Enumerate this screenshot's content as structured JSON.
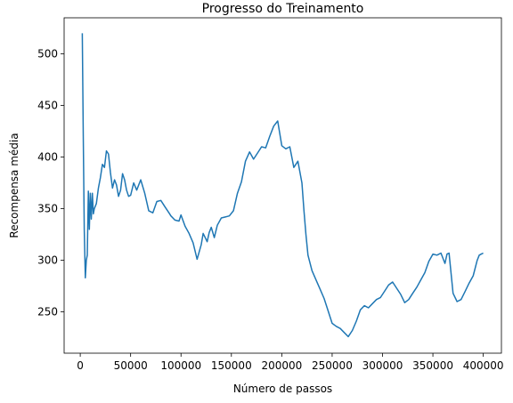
{
  "chart_data": {
    "type": "line",
    "title": "Progresso do Treinamento",
    "xlabel": "Número de passos",
    "ylabel": "Recompensa média",
    "xlim": [
      -16000,
      418000
    ],
    "ylim": [
      210,
      535
    ],
    "xticks": [
      0,
      50000,
      100000,
      150000,
      200000,
      250000,
      300000,
      350000,
      400000
    ],
    "xtick_labels": [
      "0",
      "50000",
      "100000",
      "150000",
      "200000",
      "250000",
      "300000",
      "350000",
      "400000"
    ],
    "yticks": [
      250,
      300,
      350,
      400,
      450,
      500
    ],
    "ytick_labels": [
      "250",
      "300",
      "350",
      "400",
      "450",
      "500"
    ],
    "grid": false,
    "legend": "none",
    "series": [
      {
        "color": "#1f77b4",
        "x": [
          2000,
          3000,
          4000,
          5000,
          6000,
          7000,
          8000,
          9000,
          10000,
          11000,
          12000,
          13000,
          14000,
          16000,
          18000,
          20000,
          22000,
          24000,
          26000,
          28000,
          30000,
          32000,
          34000,
          36000,
          38000,
          40000,
          42000,
          44000,
          46000,
          48000,
          50000,
          53000,
          56000,
          60000,
          64000,
          68000,
          72000,
          76000,
          80000,
          84000,
          88000,
          90000,
          94000,
          98000,
          100000,
          104000,
          108000,
          112000,
          116000,
          120000,
          122000,
          124000,
          126000,
          128000,
          130000,
          133000,
          136000,
          140000,
          144000,
          148000,
          152000,
          156000,
          160000,
          164000,
          168000,
          172000,
          176000,
          180000,
          184000,
          188000,
          192000,
          196000,
          200000,
          204000,
          208000,
          212000,
          216000,
          220000,
          222000,
          224000,
          226000,
          230000,
          234000,
          238000,
          242000,
          246000,
          250000,
          254000,
          258000,
          262000,
          266000,
          270000,
          274000,
          278000,
          282000,
          286000,
          290000,
          294000,
          298000,
          302000,
          306000,
          310000,
          314000,
          318000,
          322000,
          326000,
          330000,
          334000,
          338000,
          342000,
          346000,
          350000,
          354000,
          358000,
          362000,
          364000,
          366000,
          370000,
          374000,
          378000,
          382000,
          386000,
          390000,
          394000,
          396000,
          398000,
          400000
        ],
        "y": [
          520,
          420,
          330,
          283,
          300,
          305,
          367,
          330,
          365,
          340,
          365,
          345,
          350,
          355,
          370,
          380,
          393,
          390,
          406,
          403,
          385,
          370,
          378,
          373,
          362,
          368,
          384,
          378,
          368,
          362,
          363,
          375,
          368,
          378,
          365,
          348,
          346,
          357,
          358,
          352,
          346,
          343,
          339,
          338,
          344,
          333,
          326,
          317,
          301,
          315,
          326,
          322,
          318,
          327,
          332,
          322,
          334,
          341,
          342,
          343,
          348,
          365,
          376,
          396,
          405,
          398,
          404,
          410,
          409,
          420,
          430,
          435,
          411,
          408,
          410,
          390,
          396,
          375,
          348,
          325,
          305,
          290,
          281,
          272,
          263,
          251,
          239,
          236,
          234,
          230,
          226,
          232,
          241,
          252,
          256,
          254,
          258,
          262,
          264,
          270,
          276,
          279,
          273,
          267,
          259,
          262,
          268,
          274,
          281,
          288,
          299,
          306,
          305,
          307,
          297,
          306,
          307,
          268,
          260,
          262,
          270,
          278,
          285,
          300,
          305,
          306,
          307
        ]
      }
    ]
  }
}
